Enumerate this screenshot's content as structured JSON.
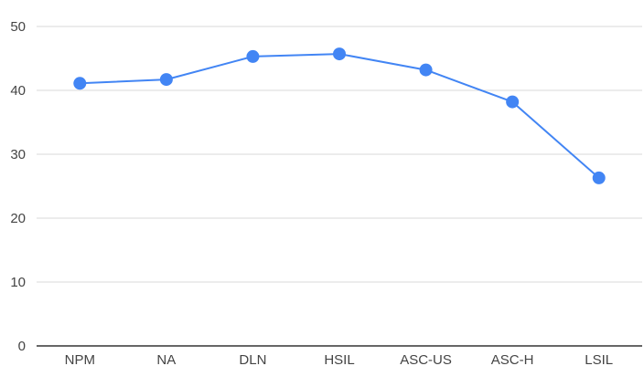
{
  "chart_data": {
    "type": "line",
    "categories": [
      "NPM",
      "NA",
      "DLN",
      "HSIL",
      "ASC-US",
      "ASC-H",
      "LSIL"
    ],
    "series": [
      {
        "values": [
          41.1,
          41.7,
          45.3,
          45.7,
          43.2,
          38.2,
          26.3
        ],
        "color": "#4285f4"
      }
    ],
    "title": "",
    "xlabel": "",
    "ylabel": "",
    "ylim": [
      0,
      50
    ],
    "yticks": [
      "0",
      "10",
      "20",
      "30",
      "40",
      "50"
    ],
    "grid": true,
    "legend": "none",
    "colors": {
      "line": "#4285f4",
      "grid": "#d9d9d9",
      "axis": "#333333",
      "text": "#444444"
    }
  }
}
